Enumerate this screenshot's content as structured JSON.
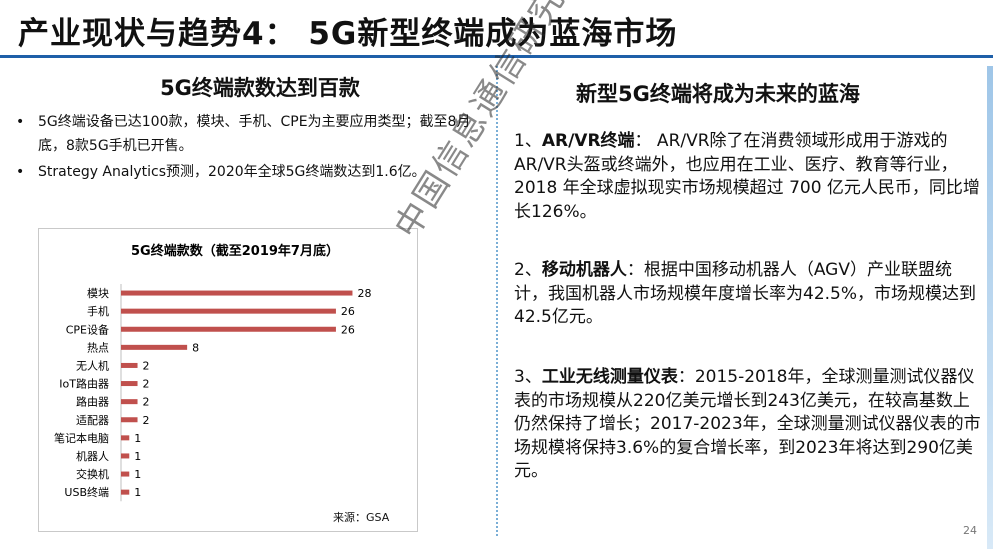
{
  "title": "产业现状与趋势4： 5G新型终端成为蓝海市场",
  "left": {
    "heading": "5G终端款数达到百款",
    "bullets": [
      "5G终端设备已达100款，模块、手机、CPE为主要应用类型；截至8月底，8款5G手机已开售。",
      "Strategy Analytics预测，2020年全球5G终端数达到1.6亿。"
    ],
    "bullet_glyph": "•",
    "source": "来源：GSA"
  },
  "chart_data": {
    "type": "bar",
    "orientation": "horizontal",
    "title": "5G终端款数（截至2019年7月底）",
    "categories": [
      "模块",
      "手机",
      "CPE设备",
      "热点",
      "无人机",
      "IoT路由器",
      "路由器",
      "适配器",
      "笔记本电脑",
      "机器人",
      "交换机",
      "USB终端"
    ],
    "values": [
      28,
      26,
      26,
      8,
      2,
      2,
      2,
      2,
      1,
      1,
      1,
      1
    ],
    "xlim": [
      0,
      30
    ],
    "bar_color": "#c0504d",
    "grid": false,
    "legend": false
  },
  "right": {
    "heading": "新型5G终端将成为未来的蓝海",
    "items": [
      {
        "prefix": "1、",
        "keyword": "AR/VR终端",
        "text": "： AR/VR除了在消费领域形成用于游戏的AR/VR头盔或终端外，也应用在工业、医疗、教育等行业，2018 年全球虚拟现实市场规模超过 700 亿元人民币，同比增长126%。"
      },
      {
        "prefix": "2、",
        "keyword": "移动机器人",
        "text": "：根据中国移动机器人（AGV）产业联盟统计，我国机器人市场规模年度增长率为42.5%，市场规模达到42.5亿元。"
      },
      {
        "prefix": "3、",
        "keyword": "工业无线测量仪表",
        "text": "：2015-2018年，全球测量测试仪器仪表的市场规模从220亿美元增长到243亿美元，在较高基数上仍然保持了增长；2017-2023年，全球测量测试仪器仪表的市场规模将保持3.6%的复合增长率，到2023年将达到290亿美元。"
      }
    ]
  },
  "watermark": "中国信息通信研究院",
  "page_number": "24",
  "colors": {
    "accent_line": "#1e5fa8",
    "divider": "#7aaed6",
    "bar": "#c0504d"
  }
}
